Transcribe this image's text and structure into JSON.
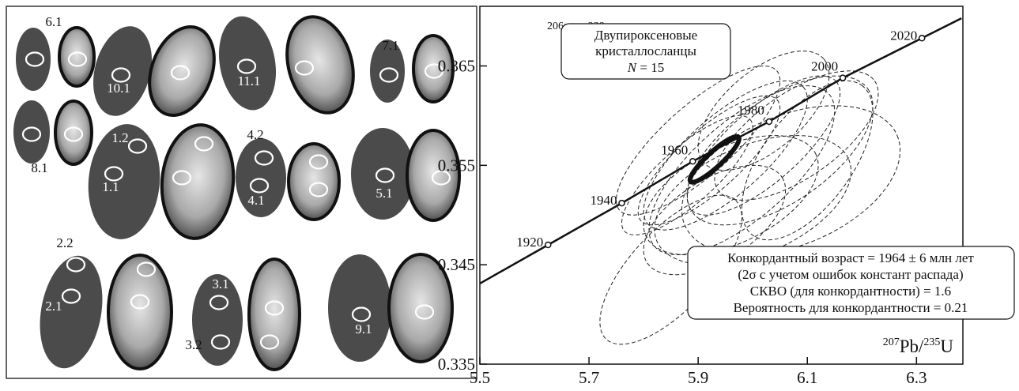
{
  "grain_labels": [
    "6.1",
    "10.1",
    "11.1",
    "7.1",
    "8.1",
    "1.2",
    "1.1",
    "4.2",
    "4.1",
    "5.1",
    "2.2",
    "2.1",
    "3.1",
    "3.2",
    "9.1"
  ],
  "chart_data": {
    "type": "concordia",
    "y_label": {
      "mass": "206",
      "element": "Pb/",
      "mass2": "238",
      "element2": "U"
    },
    "x_label": {
      "mass": "207",
      "element": "Pb/",
      "mass2": "235",
      "element2": "U"
    },
    "legend": {
      "line1": "Двупироксеновые",
      "line2": "кристаллосланцы",
      "n_symbol": "N",
      "n_text": " = 15"
    },
    "annotation": [
      "Конкордантный возраст = 1964 ± 6 млн лет",
      "(2σ с учетом ошибок констант распада)",
      "СКВО (для конкордантности) = 1.6",
      "Вероятность для конкордантности = 0.21"
    ],
    "xlim": [
      5.5,
      6.385
    ],
    "ylim": [
      0.335,
      0.371
    ],
    "xticks": [
      5.5,
      5.7,
      5.9,
      6.1,
      6.3
    ],
    "yticks": [
      0.335,
      0.345,
      0.355,
      0.365
    ],
    "concordia": {
      "age": [
        1920,
        1940,
        1960,
        1980,
        2000,
        2020
      ],
      "x": [
        5.625,
        5.76,
        5.89,
        6.03,
        6.165,
        6.31
      ],
      "y": [
        0.347,
        0.3512,
        0.3554,
        0.3594,
        0.3638,
        0.3678
      ]
    },
    "ellipses": {
      "x": [
        5.92,
        5.95,
        5.98,
        6.02,
        6.05,
        6.08,
        5.88,
        5.96,
        6.0,
        5.85,
        6.02,
        5.9,
        6.07,
        5.93,
        6.1
      ],
      "y": [
        0.3555,
        0.356,
        0.3545,
        0.357,
        0.3565,
        0.358,
        0.354,
        0.352,
        0.3515,
        0.3445,
        0.3605,
        0.3575,
        0.3535,
        0.3495,
        0.3555
      ],
      "x_err": [
        0.13,
        0.15,
        0.17,
        0.14,
        0.17,
        0.15,
        0.12,
        0.16,
        0.18,
        0.13,
        0.12,
        0.15,
        0.2,
        0.13,
        0.12
      ],
      "y_err": [
        0.0065,
        0.0075,
        0.0085,
        0.007,
        0.0075,
        0.0065,
        0.006,
        0.006,
        0.0065,
        0.0075,
        0.006,
        0.0075,
        0.0075,
        0.0055,
        0.008
      ],
      "rho": [
        0.8,
        0.75,
        0.7,
        0.75,
        0.6,
        0.65,
        0.8,
        0.5,
        0.45,
        0.7,
        0.6,
        0.8,
        0.4,
        0.55,
        0.6
      ]
    },
    "concordia_age_ellipse": {
      "x": 5.93,
      "y": 0.3556,
      "x_err": 0.045,
      "y_err": 0.0023,
      "rho": 0.9
    }
  }
}
